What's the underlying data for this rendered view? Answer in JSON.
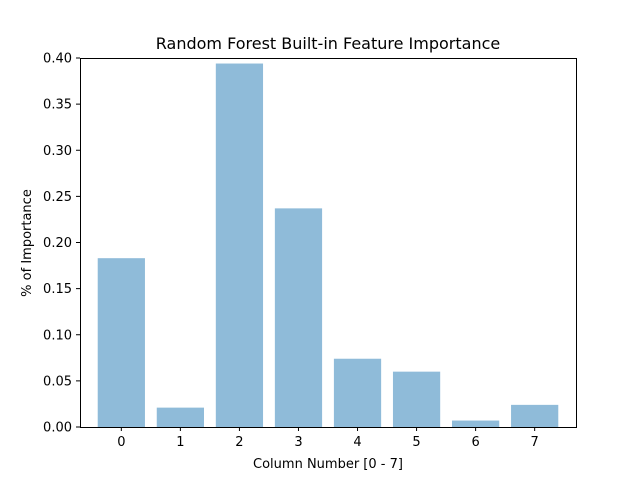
{
  "chart_data": {
    "type": "bar",
    "title": "Random Forest Built-in Feature Importance",
    "xlabel": "Column Number [0 - 7]",
    "ylabel": "% of Importance",
    "categories": [
      "0",
      "1",
      "2",
      "3",
      "4",
      "5",
      "6",
      "7"
    ],
    "values": [
      0.183,
      0.021,
      0.394,
      0.237,
      0.074,
      0.06,
      0.007,
      0.024
    ],
    "ylim": [
      0,
      0.4
    ],
    "y_ticks": [
      "0.00",
      "0.05",
      "0.10",
      "0.15",
      "0.20",
      "0.25",
      "0.30",
      "0.35",
      "0.40"
    ],
    "bar_color": "#8fbbd9",
    "grid": false,
    "legend": "none"
  }
}
